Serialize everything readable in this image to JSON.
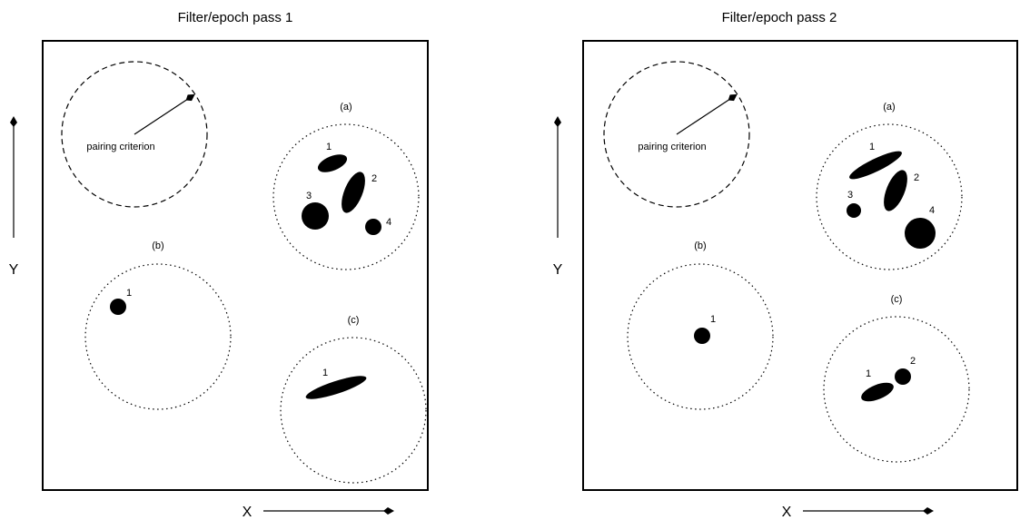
{
  "panels": [
    {
      "title": "Filter/epoch pass 1",
      "y_axis_label": "Y",
      "x_axis_label": "X",
      "pairing_label": "pairing criterion",
      "groups": [
        {
          "label": "(a)",
          "sources": [
            "1",
            "2",
            "3",
            "4"
          ]
        },
        {
          "label": "(b)",
          "sources": [
            "1"
          ]
        },
        {
          "label": "(c)",
          "sources": [
            "1"
          ]
        }
      ]
    },
    {
      "title": "Filter/epoch pass 2",
      "y_axis_label": "Y",
      "x_axis_label": "X",
      "pairing_label": "pairing criterion",
      "groups": [
        {
          "label": "(a)",
          "sources": [
            "1",
            "2",
            "3",
            "4"
          ]
        },
        {
          "label": "(b)",
          "sources": [
            "1"
          ]
        },
        {
          "label": "(c)",
          "sources": [
            "1",
            "2"
          ]
        }
      ]
    }
  ]
}
